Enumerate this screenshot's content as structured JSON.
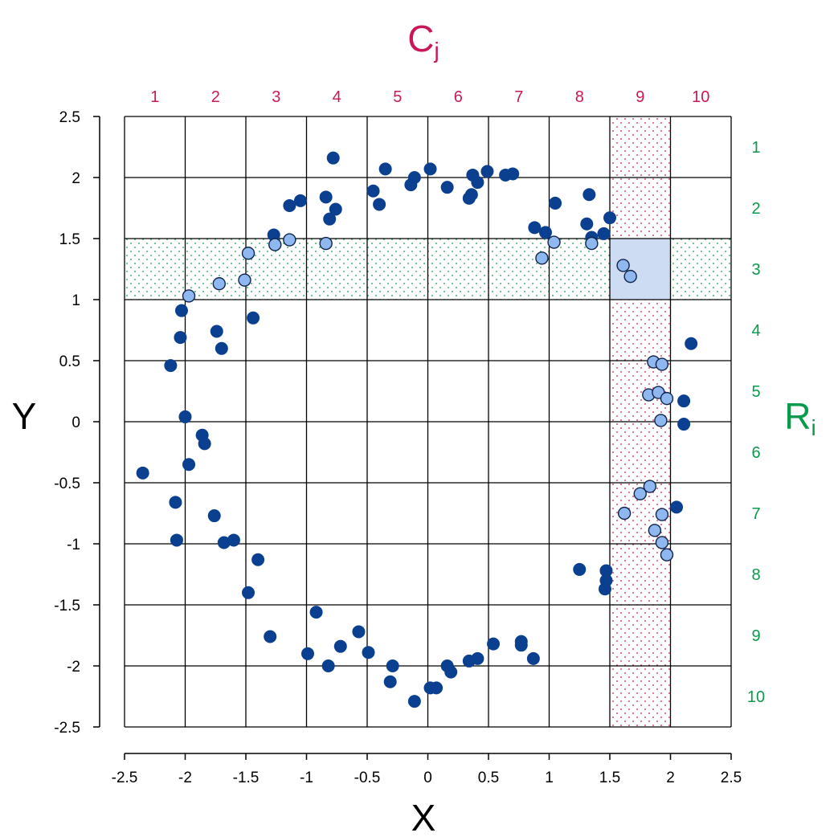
{
  "colors": {
    "col_accent": "#c8185a",
    "row_accent": "#0a9a4c",
    "point_dark": "#0b3f8f",
    "point_light": "#8fb8f0",
    "intersection": "#cddcf2"
  },
  "chart_data": {
    "type": "scatter",
    "xlabel": "X",
    "ylabel": "Y",
    "col_label": {
      "main": "C",
      "sub": "j"
    },
    "row_label": {
      "main": "R",
      "sub": "i"
    },
    "xlim": [
      -2.5,
      2.5
    ],
    "ylim": [
      -2.5,
      2.5
    ],
    "xticks": [
      "-2.5",
      "-2",
      "-1.5",
      "-1",
      "-0.5",
      "0",
      "0.5",
      "1",
      "1.5",
      "2",
      "2.5"
    ],
    "yticks": [
      "2.5",
      "2",
      "1.5",
      "1",
      "0.5",
      "0",
      "-0.5",
      "-1",
      "-1.5",
      "-2",
      "-2.5"
    ],
    "column_indices": [
      "1",
      "2",
      "3",
      "4",
      "5",
      "6",
      "7",
      "8",
      "9",
      "10"
    ],
    "row_indices": [
      "1",
      "2",
      "3",
      "4",
      "5",
      "6",
      "7",
      "8",
      "9",
      "10"
    ],
    "grid": true,
    "highlight_column": 9,
    "highlight_row": 3,
    "points_dark": [
      [
        -0.78,
        2.16
      ],
      [
        -0.35,
        2.07
      ],
      [
        0.02,
        2.07
      ],
      [
        -0.45,
        1.89
      ],
      [
        -0.4,
        1.78
      ],
      [
        -0.14,
        1.94
      ],
      [
        -0.11,
        2.0
      ],
      [
        0.16,
        1.92
      ],
      [
        0.37,
        2.02
      ],
      [
        0.41,
        1.96
      ],
      [
        0.36,
        1.86
      ],
      [
        0.34,
        1.83
      ],
      [
        0.49,
        2.05
      ],
      [
        0.64,
        2.02
      ],
      [
        0.7,
        2.03
      ],
      [
        1.05,
        1.79
      ],
      [
        1.33,
        1.86
      ],
      [
        -0.84,
        1.84
      ],
      [
        -1.05,
        1.81
      ],
      [
        -1.14,
        1.77
      ],
      [
        -0.81,
        1.66
      ],
      [
        -0.76,
        1.74
      ],
      [
        -1.27,
        1.53
      ],
      [
        0.88,
        1.59
      ],
      [
        0.97,
        1.55
      ],
      [
        1.31,
        1.62
      ],
      [
        1.35,
        1.51
      ],
      [
        1.45,
        1.54
      ],
      [
        1.5,
        1.67
      ],
      [
        -1.44,
        0.85
      ],
      [
        -2.03,
        0.91
      ],
      [
        -2.04,
        0.69
      ],
      [
        -1.74,
        0.74
      ],
      [
        -1.7,
        0.6
      ],
      [
        -2.12,
        0.46
      ],
      [
        2.17,
        0.64
      ],
      [
        -2.0,
        0.04
      ],
      [
        -1.86,
        -0.11
      ],
      [
        -1.84,
        -0.18
      ],
      [
        -1.97,
        -0.35
      ],
      [
        -2.35,
        -0.42
      ],
      [
        2.11,
        0.17
      ],
      [
        2.11,
        -0.02
      ],
      [
        -2.08,
        -0.66
      ],
      [
        -2.07,
        -0.97
      ],
      [
        -1.76,
        -0.77
      ],
      [
        -1.68,
        -0.99
      ],
      [
        -1.6,
        -0.97
      ],
      [
        2.05,
        -0.7
      ],
      [
        -1.4,
        -1.13
      ],
      [
        -1.48,
        -1.4
      ],
      [
        -1.3,
        -1.76
      ],
      [
        1.25,
        -1.21
      ],
      [
        1.47,
        -1.22
      ],
      [
        1.47,
        -1.3
      ],
      [
        1.46,
        -1.37
      ],
      [
        -0.92,
        -1.56
      ],
      [
        -0.57,
        -1.72
      ],
      [
        -0.99,
        -1.9
      ],
      [
        -0.72,
        -1.84
      ],
      [
        -0.82,
        -2.0
      ],
      [
        -0.49,
        -1.89
      ],
      [
        -0.29,
        -2.0
      ],
      [
        -0.31,
        -2.13
      ],
      [
        -0.11,
        -2.29
      ],
      [
        0.02,
        -2.18
      ],
      [
        0.07,
        -2.18
      ],
      [
        0.16,
        -2.0
      ],
      [
        0.19,
        -2.05
      ],
      [
        0.34,
        -1.96
      ],
      [
        0.41,
        -1.94
      ],
      [
        0.54,
        -1.82
      ],
      [
        0.77,
        -1.8
      ],
      [
        0.77,
        -1.83
      ],
      [
        0.87,
        -1.94
      ]
    ],
    "points_light": [
      [
        -1.97,
        1.03
      ],
      [
        -1.72,
        1.13
      ],
      [
        -1.51,
        1.16
      ],
      [
        -1.48,
        1.38
      ],
      [
        -1.26,
        1.45
      ],
      [
        -1.14,
        1.49
      ],
      [
        -0.84,
        1.46
      ],
      [
        0.94,
        1.34
      ],
      [
        1.04,
        1.47
      ],
      [
        1.35,
        1.46
      ],
      [
        1.61,
        1.28
      ],
      [
        1.67,
        1.19
      ],
      [
        1.86,
        0.49
      ],
      [
        1.93,
        0.47
      ],
      [
        1.82,
        0.22
      ],
      [
        1.9,
        0.24
      ],
      [
        1.97,
        0.19
      ],
      [
        1.92,
        0.01
      ],
      [
        1.75,
        -0.59
      ],
      [
        1.83,
        -0.53
      ],
      [
        1.62,
        -0.75
      ],
      [
        1.93,
        -0.76
      ],
      [
        1.87,
        -0.89
      ],
      [
        1.93,
        -0.99
      ],
      [
        1.97,
        -1.09
      ]
    ]
  }
}
